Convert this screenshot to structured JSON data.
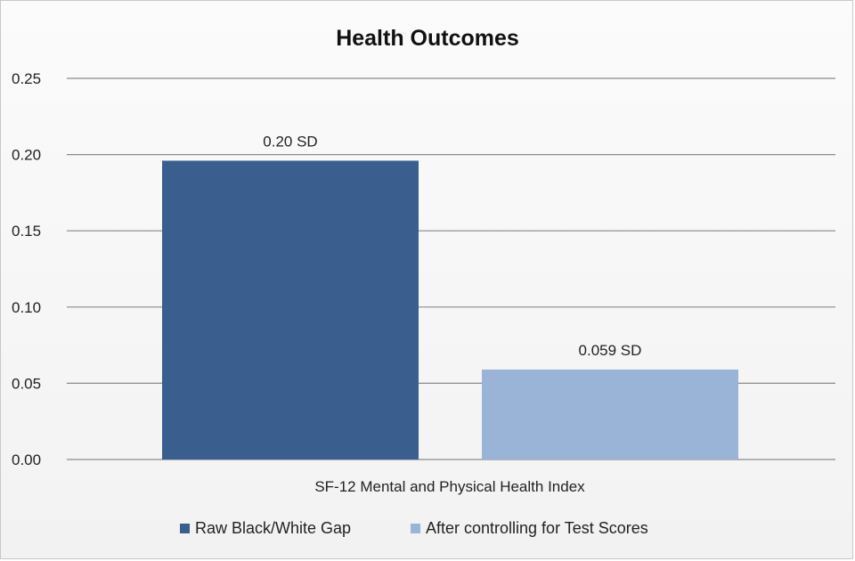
{
  "chart_data": {
    "type": "bar",
    "title": "Health Outcomes",
    "categories": [
      "SF-12 Mental and Physical Health Index"
    ],
    "series": [
      {
        "name": "Raw Black/White Gap",
        "values": [
          0.196
        ],
        "label": "0.20 SD",
        "color": "#3a5f8f"
      },
      {
        "name": "After controlling for Test Scores",
        "values": [
          0.059
        ],
        "label": "0.059 SD",
        "color": "#99b4d6"
      }
    ],
    "ylim": [
      0,
      0.25
    ],
    "yticks": [
      "0.00",
      "0.05",
      "0.10",
      "0.15",
      "0.20",
      "0.25"
    ],
    "xlabel": "",
    "ylabel": "",
    "grid": true,
    "legend_position": "bottom"
  }
}
